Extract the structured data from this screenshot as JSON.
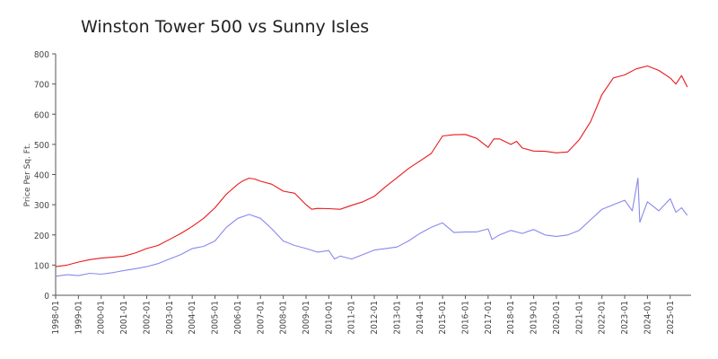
{
  "chart_data": {
    "type": "line",
    "title": "Winston Tower 500 vs Sunny Isles",
    "xlabel": "",
    "ylabel": "Price Per Sq. Ft.",
    "ylim": [
      0,
      800
    ],
    "yticks": [
      0,
      100,
      200,
      300,
      400,
      500,
      600,
      700,
      800
    ],
    "xtick_labels": [
      "1998-01",
      "1999-01",
      "2000-01",
      "2001-01",
      "2002-01",
      "2003-01",
      "2004-01",
      "2005-01",
      "2006-01",
      "2007-01",
      "2008-01",
      "2009-01",
      "2010-01",
      "2011-01",
      "2012-01",
      "2013-01",
      "2014-01",
      "2015-01",
      "2016-01",
      "2017-01",
      "2018-01",
      "2019-01",
      "2020-01",
      "2021-01",
      "2022-01",
      "2023-01",
      "2024-01",
      "2025-01"
    ],
    "grid": false,
    "legend": "none",
    "series": [
      {
        "color": "#e8191c",
        "points": [
          [
            "1998-01",
            95
          ],
          [
            "1998-07",
            100
          ],
          [
            "1999-01",
            110
          ],
          [
            "1999-07",
            118
          ],
          [
            "2000-01",
            123
          ],
          [
            "2000-07",
            126
          ],
          [
            "2001-01",
            130
          ],
          [
            "2001-07",
            140
          ],
          [
            "2002-01",
            155
          ],
          [
            "2002-07",
            165
          ],
          [
            "2003-01",
            185
          ],
          [
            "2003-07",
            205
          ],
          [
            "2004-01",
            228
          ],
          [
            "2004-07",
            255
          ],
          [
            "2005-01",
            290
          ],
          [
            "2005-07",
            335
          ],
          [
            "2006-01",
            368
          ],
          [
            "2006-04",
            380
          ],
          [
            "2006-07",
            388
          ],
          [
            "2006-10",
            385
          ],
          [
            "2007-01",
            378
          ],
          [
            "2007-07",
            368
          ],
          [
            "2008-01",
            345
          ],
          [
            "2008-07",
            338
          ],
          [
            "2009-01",
            300
          ],
          [
            "2009-04",
            285
          ],
          [
            "2009-07",
            288
          ],
          [
            "2010-01",
            287
          ],
          [
            "2010-07",
            285
          ],
          [
            "2011-01",
            298
          ],
          [
            "2011-07",
            310
          ],
          [
            "2012-01",
            328
          ],
          [
            "2012-07",
            360
          ],
          [
            "2013-01",
            390
          ],
          [
            "2013-07",
            420
          ],
          [
            "2014-01",
            445
          ],
          [
            "2014-07",
            470
          ],
          [
            "2015-01",
            528
          ],
          [
            "2015-07",
            532
          ],
          [
            "2016-01",
            533
          ],
          [
            "2016-07",
            520
          ],
          [
            "2017-01",
            490
          ],
          [
            "2017-04",
            518
          ],
          [
            "2017-07",
            518
          ],
          [
            "2018-01",
            500
          ],
          [
            "2018-04",
            510
          ],
          [
            "2018-07",
            488
          ],
          [
            "2019-01",
            478
          ],
          [
            "2019-07",
            477
          ],
          [
            "2020-01",
            472
          ],
          [
            "2020-07",
            475
          ],
          [
            "2021-01",
            515
          ],
          [
            "2021-07",
            575
          ],
          [
            "2022-01",
            665
          ],
          [
            "2022-07",
            720
          ],
          [
            "2023-01",
            730
          ],
          [
            "2023-07",
            750
          ],
          [
            "2024-01",
            760
          ],
          [
            "2024-07",
            745
          ],
          [
            "2025-01",
            720
          ],
          [
            "2025-04",
            700
          ],
          [
            "2025-07",
            728
          ],
          [
            "2025-10",
            690
          ]
        ]
      },
      {
        "color": "#8888ee",
        "points": [
          [
            "1998-01",
            63
          ],
          [
            "1998-07",
            68
          ],
          [
            "1999-01",
            65
          ],
          [
            "1999-07",
            73
          ],
          [
            "2000-01",
            70
          ],
          [
            "2000-07",
            75
          ],
          [
            "2001-01",
            82
          ],
          [
            "2001-07",
            88
          ],
          [
            "2002-01",
            95
          ],
          [
            "2002-07",
            105
          ],
          [
            "2003-01",
            120
          ],
          [
            "2003-07",
            135
          ],
          [
            "2004-01",
            155
          ],
          [
            "2004-07",
            162
          ],
          [
            "2005-01",
            180
          ],
          [
            "2005-07",
            225
          ],
          [
            "2006-01",
            255
          ],
          [
            "2006-07",
            268
          ],
          [
            "2007-01",
            255
          ],
          [
            "2007-07",
            220
          ],
          [
            "2008-01",
            180
          ],
          [
            "2008-07",
            165
          ],
          [
            "2009-01",
            155
          ],
          [
            "2009-07",
            143
          ],
          [
            "2010-01",
            148
          ],
          [
            "2010-04",
            120
          ],
          [
            "2010-07",
            130
          ],
          [
            "2011-01",
            120
          ],
          [
            "2011-07",
            135
          ],
          [
            "2012-01",
            150
          ],
          [
            "2012-07",
            155
          ],
          [
            "2013-01",
            160
          ],
          [
            "2013-07",
            180
          ],
          [
            "2014-01",
            205
          ],
          [
            "2014-07",
            225
          ],
          [
            "2015-01",
            240
          ],
          [
            "2015-07",
            208
          ],
          [
            "2016-01",
            210
          ],
          [
            "2016-07",
            210
          ],
          [
            "2017-01",
            220
          ],
          [
            "2017-03",
            185
          ],
          [
            "2017-07",
            200
          ],
          [
            "2018-01",
            215
          ],
          [
            "2018-07",
            205
          ],
          [
            "2019-01",
            218
          ],
          [
            "2019-07",
            200
          ],
          [
            "2020-01",
            195
          ],
          [
            "2020-07",
            200
          ],
          [
            "2021-01",
            215
          ],
          [
            "2021-07",
            250
          ],
          [
            "2022-01",
            285
          ],
          [
            "2022-07",
            300
          ],
          [
            "2023-01",
            315
          ],
          [
            "2023-05",
            280
          ],
          [
            "2023-08",
            388
          ],
          [
            "2023-09",
            242
          ],
          [
            "2024-01",
            310
          ],
          [
            "2024-07",
            280
          ],
          [
            "2025-01",
            320
          ],
          [
            "2025-04",
            275
          ],
          [
            "2025-07",
            290
          ],
          [
            "2025-10",
            265
          ]
        ]
      }
    ]
  }
}
